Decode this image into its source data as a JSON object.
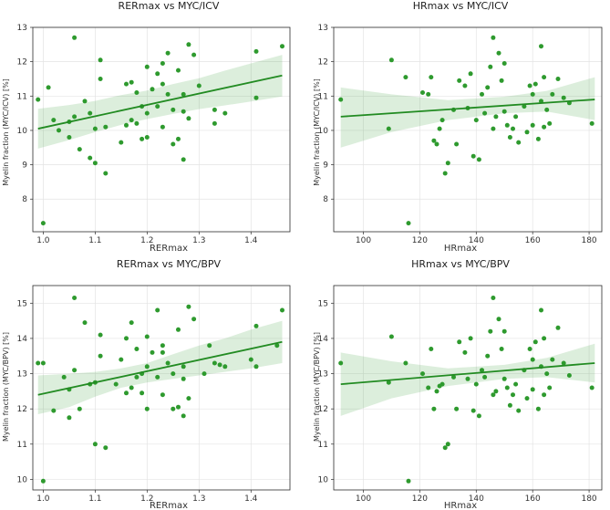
{
  "chart_data": [
    {
      "type": "scatter",
      "title": "RERmax vs MYC/ICV",
      "xlabel": "RERmax",
      "ylabel": "Myelin fraction (MYC/ICV) [%]",
      "xlim": [
        0.98,
        1.475
      ],
      "ylim": [
        7.05,
        13.0
      ],
      "xticks": [
        1.0,
        1.1,
        1.2,
        1.3,
        1.4
      ],
      "xtick_labels": [
        "1.0",
        "1.1",
        "1.2",
        "1.3",
        "1.4"
      ],
      "yticks": [
        8,
        9,
        10,
        11,
        12,
        13
      ],
      "ytick_labels": [
        "8",
        "9",
        "10",
        "11",
        "12",
        "13"
      ],
      "regression": {
        "x": [
          0.99,
          1.46
        ],
        "y": [
          10.05,
          11.6
        ]
      },
      "band": {
        "x": [
          0.99,
          1.05,
          1.1,
          1.15,
          1.2,
          1.25,
          1.3,
          1.35,
          1.4,
          1.46
        ],
        "upper": [
          10.63,
          10.74,
          10.86,
          11.03,
          11.16,
          11.35,
          11.52,
          11.74,
          11.95,
          12.2
        ],
        "lower": [
          9.47,
          9.72,
          9.95,
          10.16,
          10.33,
          10.48,
          10.62,
          10.73,
          10.84,
          10.99
        ]
      },
      "points": [
        [
          1.0,
          7.3
        ],
        [
          0.99,
          10.9
        ],
        [
          1.01,
          11.25
        ],
        [
          1.02,
          10.3
        ],
        [
          1.03,
          10.0
        ],
        [
          1.05,
          9.8
        ],
        [
          1.05,
          10.25
        ],
        [
          1.06,
          12.7
        ],
        [
          1.06,
          10.4
        ],
        [
          1.07,
          9.45
        ],
        [
          1.08,
          10.85
        ],
        [
          1.09,
          9.2
        ],
        [
          1.09,
          10.5
        ],
        [
          1.1,
          10.05
        ],
        [
          1.1,
          9.05
        ],
        [
          1.11,
          11.5
        ],
        [
          1.11,
          12.05
        ],
        [
          1.12,
          10.1
        ],
        [
          1.12,
          8.75
        ],
        [
          1.15,
          9.65
        ],
        [
          1.16,
          10.15
        ],
        [
          1.16,
          11.35
        ],
        [
          1.17,
          10.3
        ],
        [
          1.17,
          11.4
        ],
        [
          1.18,
          11.1
        ],
        [
          1.18,
          10.2
        ],
        [
          1.19,
          10.7
        ],
        [
          1.19,
          9.75
        ],
        [
          1.2,
          9.8
        ],
        [
          1.2,
          10.5
        ],
        [
          1.2,
          11.85
        ],
        [
          1.21,
          11.2
        ],
        [
          1.22,
          10.7
        ],
        [
          1.22,
          11.65
        ],
        [
          1.23,
          11.35
        ],
        [
          1.23,
          10.1
        ],
        [
          1.23,
          11.95
        ],
        [
          1.24,
          11.05
        ],
        [
          1.24,
          12.25
        ],
        [
          1.25,
          10.6
        ],
        [
          1.25,
          9.6
        ],
        [
          1.26,
          11.75
        ],
        [
          1.26,
          9.75
        ],
        [
          1.27,
          10.55
        ],
        [
          1.27,
          9.15
        ],
        [
          1.27,
          11.05
        ],
        [
          1.28,
          12.5
        ],
        [
          1.28,
          10.35
        ],
        [
          1.29,
          12.2
        ],
        [
          1.3,
          11.3
        ],
        [
          1.33,
          10.6
        ],
        [
          1.33,
          10.2
        ],
        [
          1.35,
          10.5
        ],
        [
          1.41,
          10.95
        ],
        [
          1.41,
          12.3
        ],
        [
          1.46,
          12.45
        ]
      ]
    },
    {
      "type": "scatter",
      "title": "HRmax vs MYC/ICV",
      "xlabel": "HRmax",
      "ylabel": "Myelin fraction (MYC/ICV) [%]",
      "xlim": [
        89.5,
        184.5
      ],
      "ylim": [
        7.05,
        13.0
      ],
      "xticks": [
        100,
        120,
        140,
        160,
        180
      ],
      "xtick_labels": [
        "100",
        "120",
        "140",
        "160",
        "180"
      ],
      "yticks": [
        8,
        9,
        10,
        11,
        12,
        13
      ],
      "ytick_labels": [
        "8",
        "9",
        "10",
        "11",
        "12",
        "13"
      ],
      "regression": {
        "x": [
          92,
          182
        ],
        "y": [
          10.4,
          10.9
        ]
      },
      "band": {
        "x": [
          92,
          110,
          130,
          150,
          165,
          182
        ],
        "upper": [
          11.25,
          11.05,
          10.88,
          10.98,
          11.15,
          11.55
        ],
        "lower": [
          9.5,
          9.95,
          10.3,
          10.5,
          10.55,
          10.3
        ]
      },
      "points": [
        [
          92,
          10.9
        ],
        [
          109,
          10.05
        ],
        [
          110,
          12.05
        ],
        [
          115,
          11.55
        ],
        [
          116,
          7.3
        ],
        [
          121,
          11.1
        ],
        [
          123,
          11.05
        ],
        [
          124,
          11.55
        ],
        [
          125,
          9.7
        ],
        [
          126,
          9.6
        ],
        [
          127,
          10.05
        ],
        [
          128,
          10.3
        ],
        [
          129,
          8.75
        ],
        [
          130,
          9.05
        ],
        [
          132,
          10.6
        ],
        [
          133,
          9.6
        ],
        [
          134,
          11.45
        ],
        [
          136,
          11.3
        ],
        [
          137,
          10.65
        ],
        [
          138,
          11.65
        ],
        [
          139,
          9.25
        ],
        [
          140,
          10.3
        ],
        [
          141,
          9.15
        ],
        [
          142,
          11.05
        ],
        [
          143,
          10.5
        ],
        [
          144,
          11.25
        ],
        [
          145,
          11.85
        ],
        [
          146,
          12.7
        ],
        [
          146,
          10.05
        ],
        [
          147,
          10.4
        ],
        [
          148,
          12.25
        ],
        [
          149,
          11.45
        ],
        [
          150,
          11.95
        ],
        [
          150,
          10.55
        ],
        [
          151,
          10.15
        ],
        [
          152,
          9.8
        ],
        [
          153,
          10.05
        ],
        [
          154,
          10.4
        ],
        [
          155,
          9.65
        ],
        [
          157,
          10.7
        ],
        [
          158,
          9.95
        ],
        [
          159,
          11.3
        ],
        [
          160,
          10.15
        ],
        [
          160,
          11.05
        ],
        [
          161,
          11.35
        ],
        [
          162,
          9.75
        ],
        [
          163,
          12.45
        ],
        [
          163,
          10.85
        ],
        [
          164,
          11.55
        ],
        [
          164,
          10.1
        ],
        [
          165,
          10.6
        ],
        [
          166,
          10.2
        ],
        [
          167,
          11.05
        ],
        [
          169,
          11.5
        ],
        [
          171,
          10.95
        ],
        [
          173,
          10.8
        ],
        [
          181,
          10.2
        ]
      ]
    },
    {
      "type": "scatter",
      "title": "RERmax vs MYC/BPV",
      "xlabel": "RERmax",
      "ylabel": "Myelin fraction (MYC/BPV) [%]",
      "xlim": [
        0.98,
        1.475
      ],
      "ylim": [
        9.7,
        15.5
      ],
      "xticks": [
        1.0,
        1.1,
        1.2,
        1.3,
        1.4
      ],
      "xtick_labels": [
        "1.0",
        "1.1",
        "1.2",
        "1.3",
        "1.4"
      ],
      "yticks": [
        10,
        11,
        12,
        13,
        14,
        15
      ],
      "ytick_labels": [
        "10",
        "11",
        "12",
        "13",
        "14",
        "15"
      ],
      "regression": {
        "x": [
          0.99,
          1.46
        ],
        "y": [
          12.4,
          13.9
        ]
      },
      "band": {
        "x": [
          0.99,
          1.05,
          1.1,
          1.15,
          1.2,
          1.25,
          1.3,
          1.35,
          1.4,
          1.46
        ],
        "upper": [
          12.95,
          13.0,
          13.05,
          13.15,
          13.3,
          13.55,
          13.8,
          14.0,
          14.25,
          14.5
        ],
        "lower": [
          11.85,
          12.05,
          12.35,
          12.6,
          12.75,
          12.85,
          12.95,
          13.05,
          13.15,
          13.3
        ]
      },
      "points": [
        [
          1.0,
          9.95
        ],
        [
          0.99,
          13.3
        ],
        [
          1.0,
          13.3
        ],
        [
          1.02,
          11.95
        ],
        [
          1.04,
          12.9
        ],
        [
          1.05,
          12.55
        ],
        [
          1.05,
          11.75
        ],
        [
          1.06,
          15.15
        ],
        [
          1.06,
          13.1
        ],
        [
          1.07,
          12.0
        ],
        [
          1.08,
          14.45
        ],
        [
          1.09,
          12.7
        ],
        [
          1.1,
          12.75
        ],
        [
          1.1,
          11.0
        ],
        [
          1.11,
          14.1
        ],
        [
          1.11,
          13.5
        ],
        [
          1.12,
          10.9
        ],
        [
          1.14,
          12.7
        ],
        [
          1.15,
          13.4
        ],
        [
          1.16,
          12.45
        ],
        [
          1.16,
          14.0
        ],
        [
          1.17,
          12.6
        ],
        [
          1.17,
          14.45
        ],
        [
          1.18,
          13.7
        ],
        [
          1.18,
          12.9
        ],
        [
          1.19,
          13.0
        ],
        [
          1.19,
          12.45
        ],
        [
          1.2,
          12.0
        ],
        [
          1.2,
          13.2
        ],
        [
          1.2,
          14.05
        ],
        [
          1.21,
          13.6
        ],
        [
          1.22,
          12.9
        ],
        [
          1.22,
          14.8
        ],
        [
          1.23,
          13.6
        ],
        [
          1.23,
          12.4
        ],
        [
          1.23,
          13.8
        ],
        [
          1.24,
          13.3
        ],
        [
          1.25,
          13.0
        ],
        [
          1.25,
          12.0
        ],
        [
          1.26,
          14.25
        ],
        [
          1.26,
          12.05
        ],
        [
          1.27,
          12.85
        ],
        [
          1.27,
          11.8
        ],
        [
          1.27,
          13.2
        ],
        [
          1.28,
          14.9
        ],
        [
          1.28,
          12.3
        ],
        [
          1.29,
          14.55
        ],
        [
          1.31,
          13.0
        ],
        [
          1.32,
          13.8
        ],
        [
          1.33,
          13.3
        ],
        [
          1.34,
          13.25
        ],
        [
          1.35,
          13.2
        ],
        [
          1.4,
          13.4
        ],
        [
          1.41,
          13.2
        ],
        [
          1.41,
          14.35
        ],
        [
          1.45,
          13.8
        ],
        [
          1.46,
          14.8
        ]
      ]
    },
    {
      "type": "scatter",
      "title": "HRmax vs MYC/BPV",
      "xlabel": "HRmax",
      "ylabel": "Myelin fraction (MYC/BPV) [%]",
      "xlim": [
        89.5,
        184.5
      ],
      "ylim": [
        9.7,
        15.5
      ],
      "xticks": [
        100,
        120,
        140,
        160,
        180
      ],
      "xtick_labels": [
        "100",
        "120",
        "140",
        "160",
        "180"
      ],
      "yticks": [
        10,
        11,
        12,
        13,
        14,
        15
      ],
      "ytick_labels": [
        "10",
        "11",
        "12",
        "13",
        "14",
        "15"
      ],
      "regression": {
        "x": [
          92,
          182
        ],
        "y": [
          12.7,
          13.3
        ]
      },
      "band": {
        "x": [
          92,
          110,
          130,
          150,
          165,
          182
        ],
        "upper": [
          13.6,
          13.35,
          13.15,
          13.25,
          13.45,
          13.85
        ],
        "lower": [
          11.8,
          12.3,
          12.65,
          12.85,
          12.9,
          12.75
        ]
      },
      "points": [
        [
          92,
          13.3
        ],
        [
          109,
          12.75
        ],
        [
          110,
          14.05
        ],
        [
          115,
          13.3
        ],
        [
          116,
          9.95
        ],
        [
          121,
          13.0
        ],
        [
          123,
          12.6
        ],
        [
          124,
          13.7
        ],
        [
          125,
          12.0
        ],
        [
          126,
          12.5
        ],
        [
          127,
          12.65
        ],
        [
          128,
          12.7
        ],
        [
          129,
          10.9
        ],
        [
          130,
          11.0
        ],
        [
          132,
          12.9
        ],
        [
          133,
          12.0
        ],
        [
          134,
          13.9
        ],
        [
          136,
          13.6
        ],
        [
          137,
          12.85
        ],
        [
          138,
          14.0
        ],
        [
          139,
          11.95
        ],
        [
          140,
          12.7
        ],
        [
          141,
          11.8
        ],
        [
          142,
          13.1
        ],
        [
          143,
          12.9
        ],
        [
          144,
          13.5
        ],
        [
          145,
          14.2
        ],
        [
          146,
          15.15
        ],
        [
          146,
          12.4
        ],
        [
          147,
          12.5
        ],
        [
          148,
          14.55
        ],
        [
          149,
          13.7
        ],
        [
          150,
          14.2
        ],
        [
          150,
          12.85
        ],
        [
          151,
          12.6
        ],
        [
          152,
          12.1
        ],
        [
          153,
          12.4
        ],
        [
          154,
          12.7
        ],
        [
          155,
          11.95
        ],
        [
          157,
          13.1
        ],
        [
          158,
          12.3
        ],
        [
          159,
          13.7
        ],
        [
          160,
          12.55
        ],
        [
          160,
          13.4
        ],
        [
          161,
          13.9
        ],
        [
          162,
          12.0
        ],
        [
          163,
          14.8
        ],
        [
          163,
          13.2
        ],
        [
          164,
          14.0
        ],
        [
          164,
          12.4
        ],
        [
          165,
          13.0
        ],
        [
          166,
          12.6
        ],
        [
          167,
          13.4
        ],
        [
          169,
          14.3
        ],
        [
          171,
          13.3
        ],
        [
          173,
          12.95
        ],
        [
          181,
          12.6
        ]
      ]
    }
  ],
  "colors": {
    "point": "#2e9a2e",
    "line": "#228b22",
    "band": "#2e9a2e"
  }
}
